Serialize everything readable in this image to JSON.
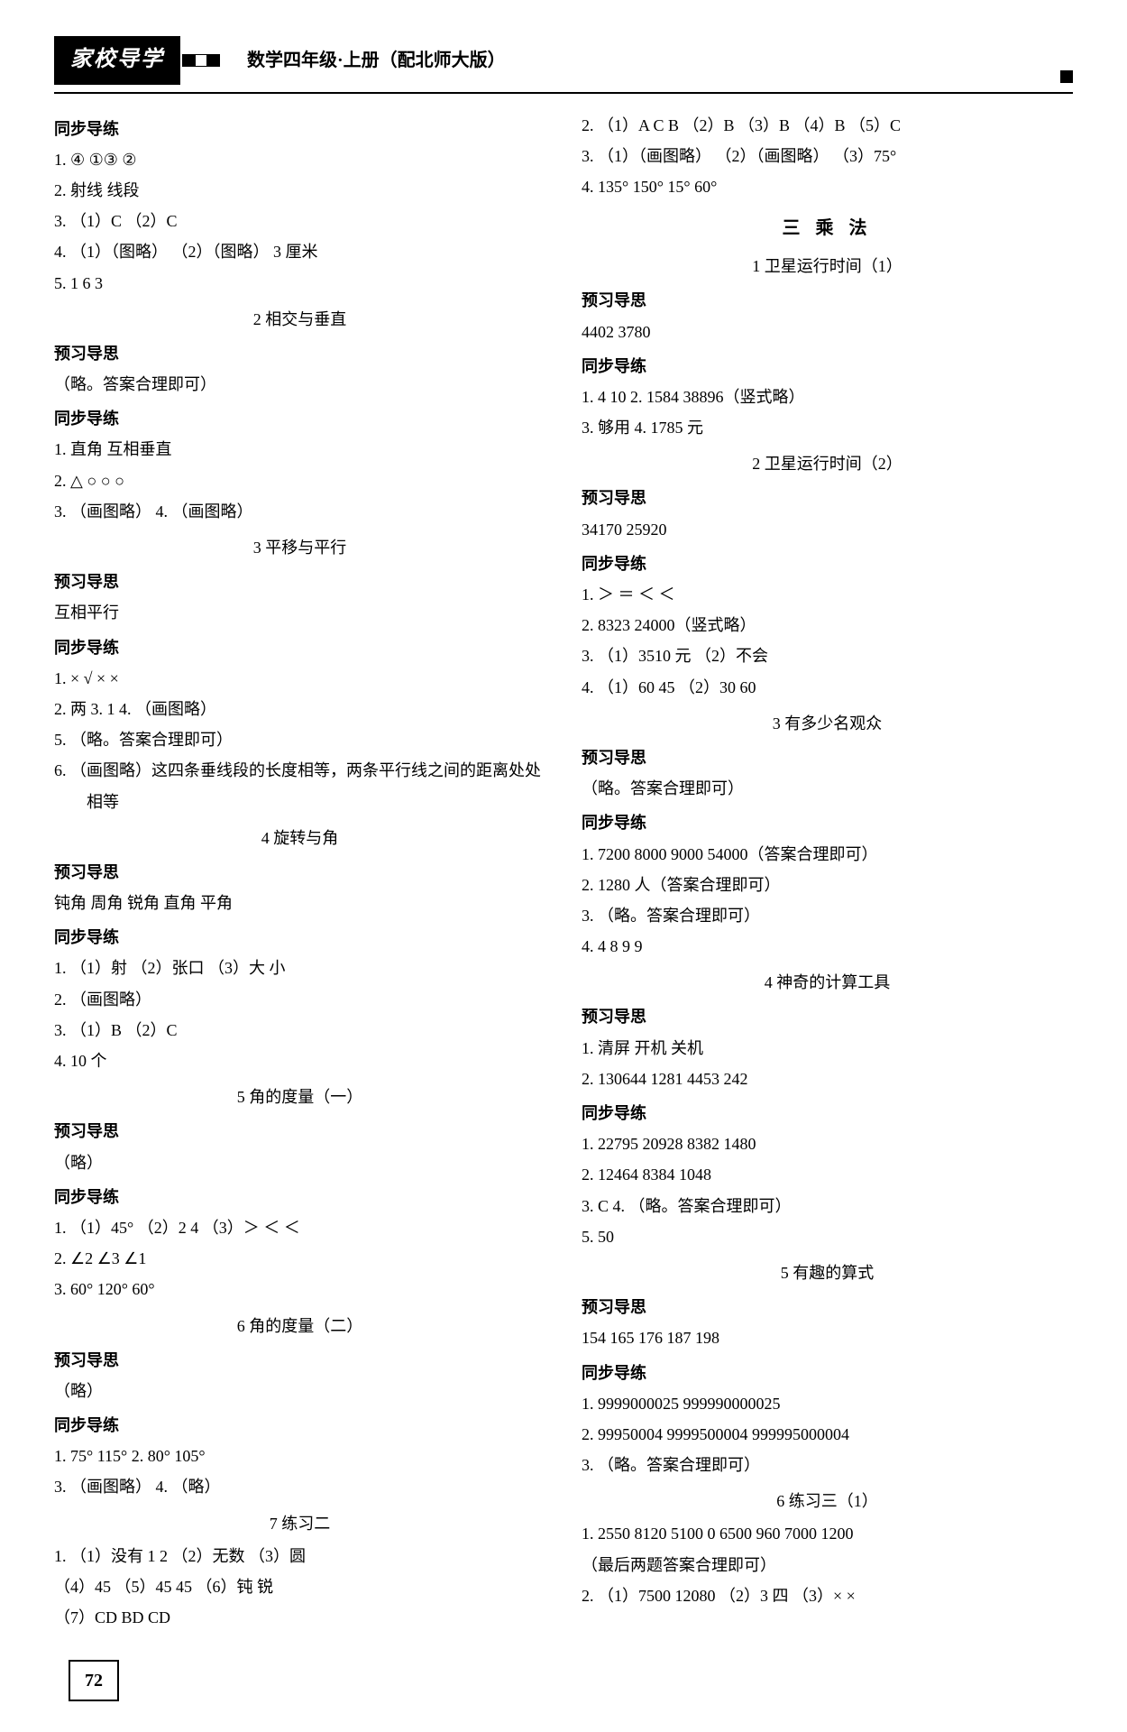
{
  "header": {
    "logo": "家校导学",
    "title": "数学四年级·上册（配北师大版）"
  },
  "left": {
    "h_tongbu1": "同步导练",
    "l1": "1.  ④   ①③   ②",
    "l2": "2.  射线   线段",
    "l3": "3. （1）C  （2）C",
    "l4": "4. （1）（图略）  （2）（图略）  3 厘米",
    "l5": "5.  1   6   3",
    "sec2_title": "2   相交与垂直",
    "h_yuxi2": "预习导思",
    "yuxi2_1": "（略。答案合理即可）",
    "h_tongbu2": "同步导练",
    "t2_1": "1.  直角   互相垂直",
    "t2_2": "2.  △    ○    ○    ○",
    "t2_3": "3. （画图略）  4. （画图略）",
    "sec3_title": "3   平移与平行",
    "h_yuxi3": "预习导思",
    "yuxi3_1": "互相平行",
    "h_tongbu3": "同步导练",
    "t3_1": "1.  ×    √    ×    ×",
    "t3_2": "2.  两   3.  1   4. （画图略）",
    "t3_3": "5. （略。答案合理即可）",
    "t3_4": "6. （画图略）这四条垂线段的长度相等，两条平行线之间的距离处处相等",
    "sec4_title": "4   旋转与角",
    "h_yuxi4": "预习导思",
    "yuxi4_1": "钝角   周角   锐角   直角   平角",
    "h_tongbu4": "同步导练",
    "t4_1": "1. （1）射  （2）张口  （3）大   小",
    "t4_2": "2. （画图略）",
    "t4_3": "3. （1）B  （2）C",
    "t4_4": "4.  10 个",
    "sec5_title": "5   角的度量（一）",
    "h_yuxi5": "预习导思",
    "yuxi5_1": "（略）",
    "h_tongbu5": "同步导练",
    "t5_1": "1. （1）45°  （2）2   4  （3）＞   ＜   ＜",
    "t5_2": "2.  ∠2    ∠3    ∠1",
    "t5_3": "3.  60°   120°   60°",
    "sec6_title": "6   角的度量（二）",
    "h_yuxi6": "预习导思",
    "yuxi6_1": "（略）",
    "h_tongbu6": "同步导练",
    "t6_1": "1.  75°   115°   2.  80°   105°",
    "t6_2": "3. （画图略）  4. （略）",
    "sec7_title": "7   练习二",
    "t7_1": "1. （1）没有   1   2  （2）无数  （3）圆",
    "t7_2": "   （4）45  （5）45   45  （6）钝   锐",
    "t7_3": "   （7）CD   BD   CD"
  },
  "right": {
    "r1": "2. （1）A   C   B  （2）B  （3）B  （4）B  （5）C",
    "r2": "3. （1）（画图略）  （2）（画图略）  （3）75°",
    "r3": "4.  135°   150°   15°   60°",
    "chapter3": "三   乘   法",
    "sec31_title": "1   卫星运行时间（1）",
    "h_yuxi31": "预习导思",
    "yuxi31_1": "4402   3780",
    "h_tongbu31": "同步导练",
    "t31_1": "1.  4   10   2.  1584   38896（竖式略）",
    "t31_2": "3.  够用   4.  1785 元",
    "sec32_title": "2   卫星运行时间（2）",
    "h_yuxi32": "预习导思",
    "yuxi32_1": "34170   25920",
    "h_tongbu32": "同步导练",
    "t32_1": "1.  ＞    ＝    ＜    ＜",
    "t32_2": "2.  8323   24000（竖式略）",
    "t32_3": "3. （1）3510 元  （2）不会",
    "t32_4": "4. （1）60   45   （2）30   60",
    "sec33_title": "3   有多少名观众",
    "h_yuxi33": "预习导思",
    "yuxi33_1": "（略。答案合理即可）",
    "h_tongbu33": "同步导练",
    "t33_1": "1.  7200   8000   9000   54000（答案合理即可）",
    "t33_2": "2.  1280 人（答案合理即可）",
    "t33_3": "3. （略。答案合理即可）",
    "t33_4": "4.  4   8   9   9",
    "sec34_title": "4   神奇的计算工具",
    "h_yuxi34": "预习导思",
    "yuxi34_1": "1.  清屏   开机   关机",
    "yuxi34_2": "2.  130644   1281   4453   242",
    "h_tongbu34": "同步导练",
    "t34_1": "1.  22795   20928   8382   1480",
    "t34_2": "2.  12464   8384   1048",
    "t34_3": "3.  C   4. （略。答案合理即可）",
    "t34_4": "5.  50",
    "sec35_title": "5   有趣的算式",
    "h_yuxi35": "预习导思",
    "yuxi35_1": "154   165   176   187   198",
    "h_tongbu35": "同步导练",
    "t35_1": "1.  9999000025   999990000025",
    "t35_2": "2.  99950004   9999500004   999995000004",
    "t35_3": "3. （略。答案合理即可）",
    "sec36_title": "6   练习三（1）",
    "t36_1": "1.  2550   8120   5100   0   6500   960   7000   1200",
    "t36_2": "   （最后两题答案合理即可）",
    "t36_3": "2. （1）7500   12080   （2）3   四   （3）×    ×"
  },
  "page_number": "72"
}
